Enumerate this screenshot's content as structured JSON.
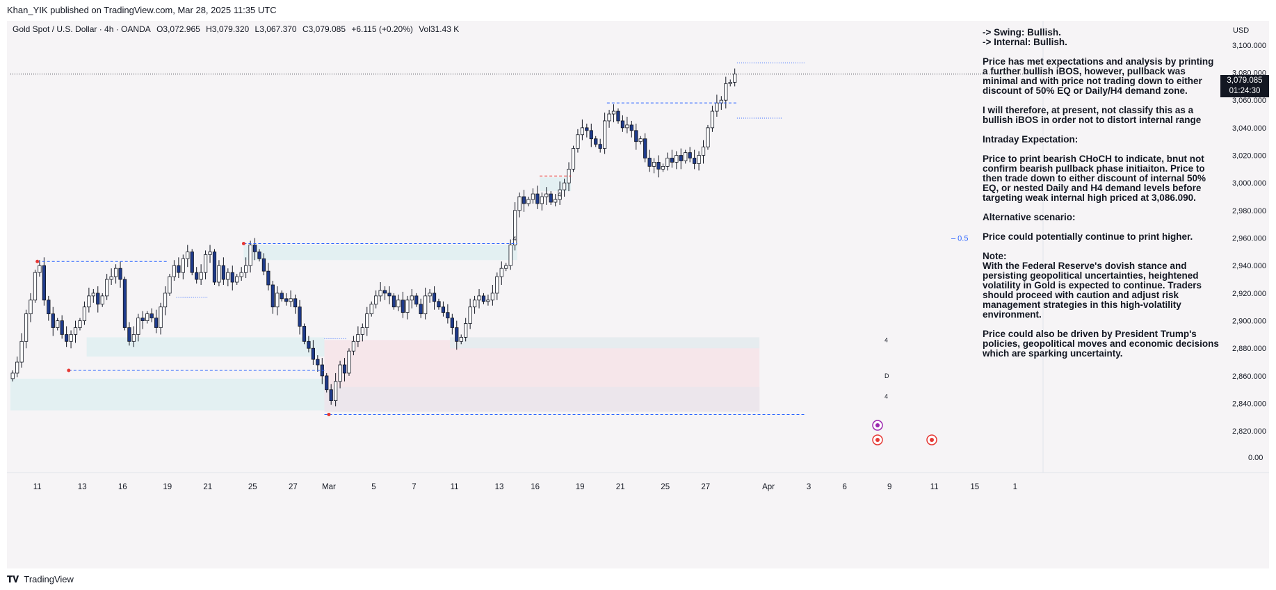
{
  "header": {
    "publish_line": "Khan_YIK published on TradingView.com, Mar 28, 2025 11:35 UTC"
  },
  "symbol": {
    "name": "Gold Spot / U.S. Dollar · 4h · OANDA",
    "open": "O3,072.965",
    "high": "H3,079.320",
    "low": "L3,067.370",
    "close": "C3,079.085",
    "change": "+6.115 (+0.20%)",
    "volume": "Vol31.43 K"
  },
  "price_axis": {
    "currency": "USD",
    "last_price": "3,079.085",
    "countdown": "01:24:30",
    "extra_tick": "0.00",
    "fib_label": "–  0.5"
  },
  "annotation": {
    "swing": "-> Swing:  Bullish.",
    "internal": "-> Internal:  Bullish.",
    "p1": "Price has met expectations and analysis by printing a further bullish iBOS, however, pullback was minimal and with price not trading down to either discount of 50% EQ or Daily/H4 demand zone.",
    "p2": "I will therefore, at present, not classify this as a bullish iBOS in order not to distort internal range",
    "p3": "Intraday Expectation:",
    "p4": "Price to print bearish CHoCH to indicate, bnut not confirm bearish pullback phase initiaiton. Price to then trade down to either discount of internal 50% EQ, or nested Daily and H4 demand levels before targeting weak internal high priced at 3,086.090.",
    "p5": "Alternative scenario:",
    "p6": "Price could potentially continue to print higher.",
    "p7_title": "Note:",
    "p7": "With the Federal Reserve's dovish stance and persisting geopolitical uncertainties, heightened volatility in Gold is expected to continue. Traders should proceed with caution and adjust risk management strategies in this high-volatility environment.",
    "p8": "Price could also be driven by President Trump's policies, geopolitical moves and economic decisions which are sparking uncertainty."
  },
  "footer": {
    "brand": "TradingView"
  },
  "chart_data": {
    "type": "candlestick",
    "ylim": [
      2805,
      3110
    ],
    "y_ticks": [
      2820,
      2840,
      2860,
      2880,
      2900,
      2920,
      2940,
      2960,
      2980,
      3000,
      3020,
      3040,
      3060,
      3080,
      3100
    ],
    "y_tick_labels": [
      "2,820.000",
      "2,840.000",
      "2,860.000",
      "2,880.000",
      "2,900.000",
      "2,920.000",
      "2,940.000",
      "2,960.000",
      "2,980.000",
      "3,000.000",
      "3,020.000",
      "3,040.000",
      "3,060.000",
      "3,080.000",
      "3,100.000"
    ],
    "x_ticks": [
      {
        "label": "11",
        "bar": 6
      },
      {
        "label": "13",
        "bar": 16
      },
      {
        "label": "16",
        "bar": 25
      },
      {
        "label": "19",
        "bar": 35
      },
      {
        "label": "21",
        "bar": 44
      },
      {
        "label": "25",
        "bar": 54
      },
      {
        "label": "27",
        "bar": 63
      },
      {
        "label": "Mar",
        "bar": 71
      },
      {
        "label": "5",
        "bar": 81
      },
      {
        "label": "7",
        "bar": 90
      },
      {
        "label": "11",
        "bar": 99
      },
      {
        "label": "13",
        "bar": 109
      },
      {
        "label": "16",
        "bar": 117
      },
      {
        "label": "19",
        "bar": 127
      },
      {
        "label": "21",
        "bar": 136
      },
      {
        "label": "25",
        "bar": 146
      },
      {
        "label": "27",
        "bar": 155
      },
      {
        "label": "Apr",
        "bar": 169
      },
      {
        "label": "3",
        "bar": 178
      },
      {
        "label": "6",
        "bar": 186
      },
      {
        "label": "9",
        "bar": 196
      },
      {
        "label": "11",
        "bar": 206
      },
      {
        "label": "15",
        "bar": 215
      },
      {
        "label": "1",
        "bar": 224
      }
    ],
    "close": [
      2862,
      2870,
      2885,
      2905,
      2915,
      2935,
      2940,
      2915,
      2905,
      2895,
      2900,
      2890,
      2885,
      2890,
      2895,
      2900,
      2910,
      2918,
      2920,
      2912,
      2918,
      2930,
      2932,
      2938,
      2930,
      2895,
      2885,
      2890,
      2902,
      2900,
      2905,
      2902,
      2895,
      2910,
      2920,
      2932,
      2940,
      2935,
      2945,
      2950,
      2935,
      2930,
      2935,
      2948,
      2950,
      2928,
      2940,
      2930,
      2935,
      2928,
      2932,
      2935,
      2940,
      2955,
      2950,
      2945,
      2936,
      2926,
      2910,
      2920,
      2916,
      2914,
      2916,
      2910,
      2896,
      2885,
      2880,
      2872,
      2868,
      2860,
      2850,
      2842,
      2856,
      2868,
      2862,
      2878,
      2885,
      2890,
      2895,
      2905,
      2912,
      2918,
      2922,
      2920,
      2918,
      2910,
      2915,
      2906,
      2915,
      2918,
      2912,
      2905,
      2918,
      2920,
      2914,
      2910,
      2906,
      2902,
      2895,
      2885,
      2888,
      2898,
      2910,
      2915,
      2918,
      2914,
      2915,
      2920,
      2932,
      2938,
      2940,
      2955,
      2980,
      2990,
      2985,
      2988,
      2992,
      2985,
      2990,
      2992,
      2986,
      2988,
      2995,
      3000,
      3010,
      3025,
      3035,
      3040,
      3038,
      3032,
      3028,
      3025,
      3045,
      3050,
      3052,
      3045,
      3040,
      3042,
      3038,
      3030,
      3032,
      3018,
      3012,
      3015,
      3010,
      3012,
      3018,
      3015,
      3020,
      3016,
      3022,
      3018,
      3014,
      3020,
      3026,
      3040,
      3052,
      3058,
      3060,
      3072,
      3073,
      3079
    ]
  },
  "sources": [
    {
      "label": "4",
      "type": "source-tag"
    },
    {
      "label": "D",
      "type": "source-tag"
    }
  ]
}
